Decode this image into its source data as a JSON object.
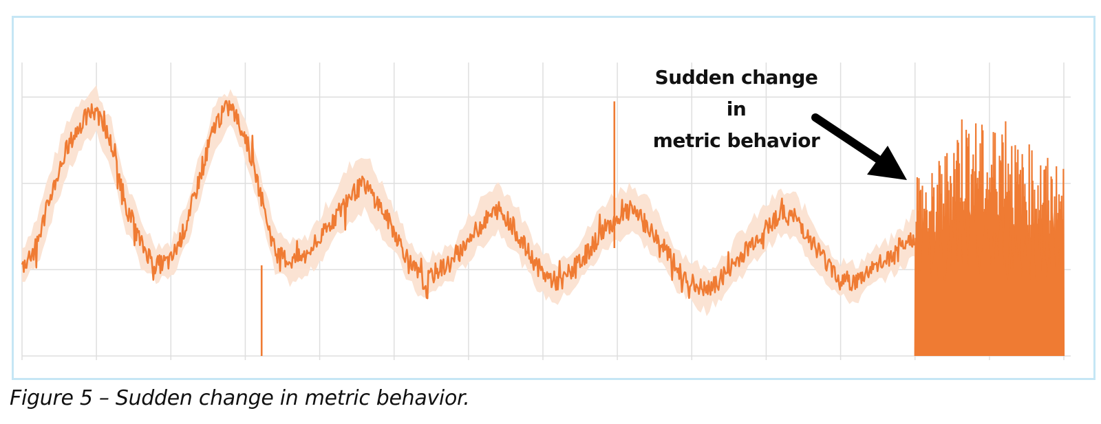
{
  "figure": {
    "caption": "Figure 5 – Sudden change in metric behavior."
  },
  "chart_data": {
    "type": "line",
    "x": [
      0,
      1,
      2,
      3,
      4,
      5,
      6,
      7,
      8,
      9,
      10,
      11,
      12,
      13,
      14,
      15,
      16,
      17,
      18,
      19,
      20,
      21,
      22,
      23,
      24,
      25,
      26,
      27,
      28,
      29,
      30,
      31,
      32,
      33,
      34,
      35,
      36,
      37,
      38,
      39,
      40,
      41,
      42,
      43,
      44,
      45,
      46,
      47,
      48,
      49,
      50,
      51,
      52,
      53,
      54,
      55,
      56,
      57,
      58,
      59,
      60,
      61,
      62,
      63,
      64,
      65,
      66,
      67,
      68,
      69,
      70
    ],
    "series": [
      {
        "role": "metric",
        "values": [
          1.02,
          1.3,
          1.9,
          2.4,
          2.7,
          2.9,
          2.45,
          1.75,
          1.3,
          1.05,
          1.1,
          1.5,
          2.1,
          2.7,
          2.9,
          2.55,
          1.9,
          1.2,
          1.1,
          1.15,
          1.35,
          1.6,
          1.85,
          2.0,
          1.75,
          1.45,
          1.1,
          0.85,
          1.0,
          1.1,
          1.35,
          1.55,
          1.7,
          1.5,
          1.2,
          0.95,
          0.85,
          1.0,
          1.2,
          1.45,
          1.6,
          1.7,
          1.5,
          1.3,
          1.0,
          0.85,
          0.75,
          0.9,
          1.1,
          1.3,
          1.5,
          1.65,
          1.6,
          1.35,
          1.1,
          0.9,
          0.85,
          1.0,
          1.1,
          1.2,
          1.4,
          1.6,
          1.75,
          1.9,
          1.8,
          1.6,
          1.3,
          1.0,
          0.9,
          0.95,
          1.05
        ],
        "color": "#ef7b33"
      },
      {
        "role": "expected band",
        "upper": [
          1.25,
          1.6,
          2.2,
          2.7,
          3.0,
          3.1,
          2.7,
          2.0,
          1.55,
          1.3,
          1.3,
          1.75,
          2.35,
          2.95,
          3.1,
          2.8,
          2.15,
          1.45,
          1.3,
          1.35,
          1.6,
          1.9,
          2.2,
          2.35,
          2.05,
          1.7,
          1.35,
          1.1,
          1.2,
          1.3,
          1.6,
          1.85,
          2.0,
          1.8,
          1.45,
          1.2,
          1.1,
          1.25,
          1.45,
          1.75,
          1.9,
          2.0,
          1.8,
          1.55,
          1.25,
          1.1,
          1.0,
          1.15,
          1.35,
          1.55,
          1.75,
          1.9,
          1.85,
          1.6,
          1.3,
          1.1,
          1.05,
          1.2,
          1.3,
          1.45,
          1.7,
          1.9,
          2.05,
          2.25,
          2.1,
          1.9,
          1.55,
          1.25,
          1.15,
          1.2,
          1.3
        ],
        "lower": [
          0.85,
          1.05,
          1.6,
          2.1,
          2.4,
          2.6,
          2.15,
          1.45,
          1.05,
          0.85,
          0.9,
          1.25,
          1.85,
          2.45,
          2.65,
          2.3,
          1.65,
          0.95,
          0.85,
          0.9,
          1.1,
          1.35,
          1.55,
          1.7,
          1.45,
          1.2,
          0.85,
          0.65,
          0.8,
          0.9,
          1.1,
          1.3,
          1.45,
          1.25,
          0.95,
          0.7,
          0.62,
          0.78,
          0.98,
          1.2,
          1.35,
          1.45,
          1.25,
          1.05,
          0.78,
          0.62,
          0.52,
          0.68,
          0.88,
          1.05,
          1.25,
          1.4,
          1.35,
          1.1,
          0.88,
          0.68,
          0.62,
          0.8,
          0.9,
          1.0,
          1.15,
          1.35,
          1.5,
          1.6,
          1.5,
          1.35,
          1.05,
          0.8,
          0.7,
          0.75,
          0.85
        ],
        "color": "#fbe3d3"
      }
    ],
    "spikes": [
      {
        "x": 16.1,
        "from": 1.05,
        "to": 0
      },
      {
        "x": 39.8,
        "from": 1.25,
        "to": 2.95
      }
    ],
    "regime_change": {
      "x_start": 60.0,
      "x_end": 70.0,
      "min": 0,
      "peak_envelope": [
        2.3,
        2.1,
        2.4,
        2.9,
        2.8,
        2.6,
        3.0,
        2.4,
        2.5,
        2.3,
        2.2
      ]
    },
    "xlim": [
      0,
      70
    ],
    "ylim": [
      0,
      3.4
    ],
    "x_gridlines": 14,
    "y_gridlines": [
      0,
      1,
      2,
      3
    ],
    "grid": true,
    "annotation": {
      "lines": [
        "Sudden change in",
        "metric behavior"
      ],
      "arrow_color": "#000000"
    }
  }
}
